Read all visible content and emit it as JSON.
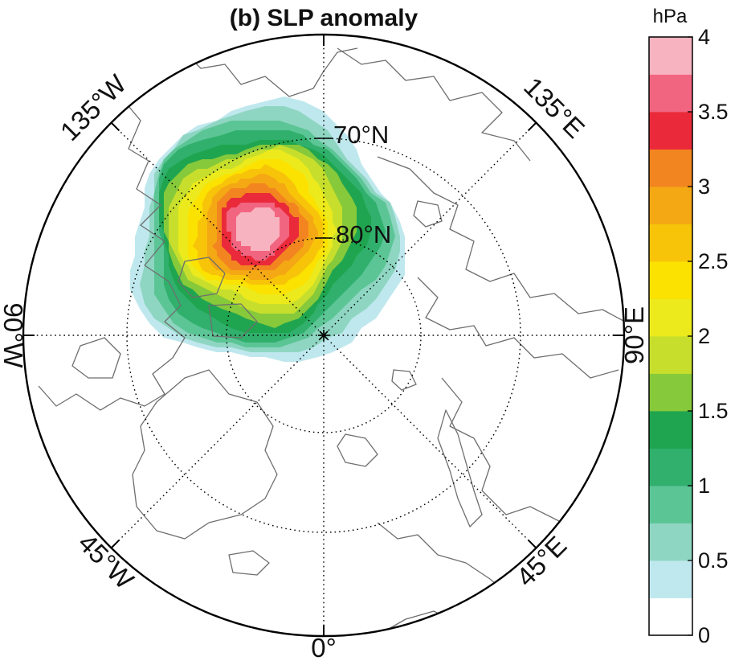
{
  "title": "(b) SLP anomaly",
  "colorbar": {
    "unit": "hPa",
    "ticks": [
      "0",
      "0.5",
      "1",
      "1.5",
      "2",
      "2.5",
      "3",
      "3.5",
      "4"
    ],
    "levels": [
      0,
      0.25,
      0.5,
      0.75,
      1,
      1.25,
      1.5,
      1.75,
      2,
      2.25,
      2.5,
      2.75,
      3,
      3.25,
      3.5,
      3.75,
      4
    ],
    "colors": [
      "#ffffff",
      "#bfe8ee",
      "#8fd6c2",
      "#5cc596",
      "#30b06c",
      "#1fa54f",
      "#86c93a",
      "#c7df2c",
      "#ecea1c",
      "#fbe200",
      "#f8c409",
      "#f4a814",
      "#f38520",
      "#ea2a3a",
      "#f26580",
      "#f7b4c0"
    ]
  },
  "map": {
    "projection": "north polar stereographic",
    "lon_labels": [
      "135°W",
      "135°E",
      "90°W",
      "90°E",
      "45°W",
      "45°E",
      "0°"
    ],
    "lat_labels": [
      "70°N",
      "80°N"
    ],
    "anomaly_max_hpa": 4
  }
}
